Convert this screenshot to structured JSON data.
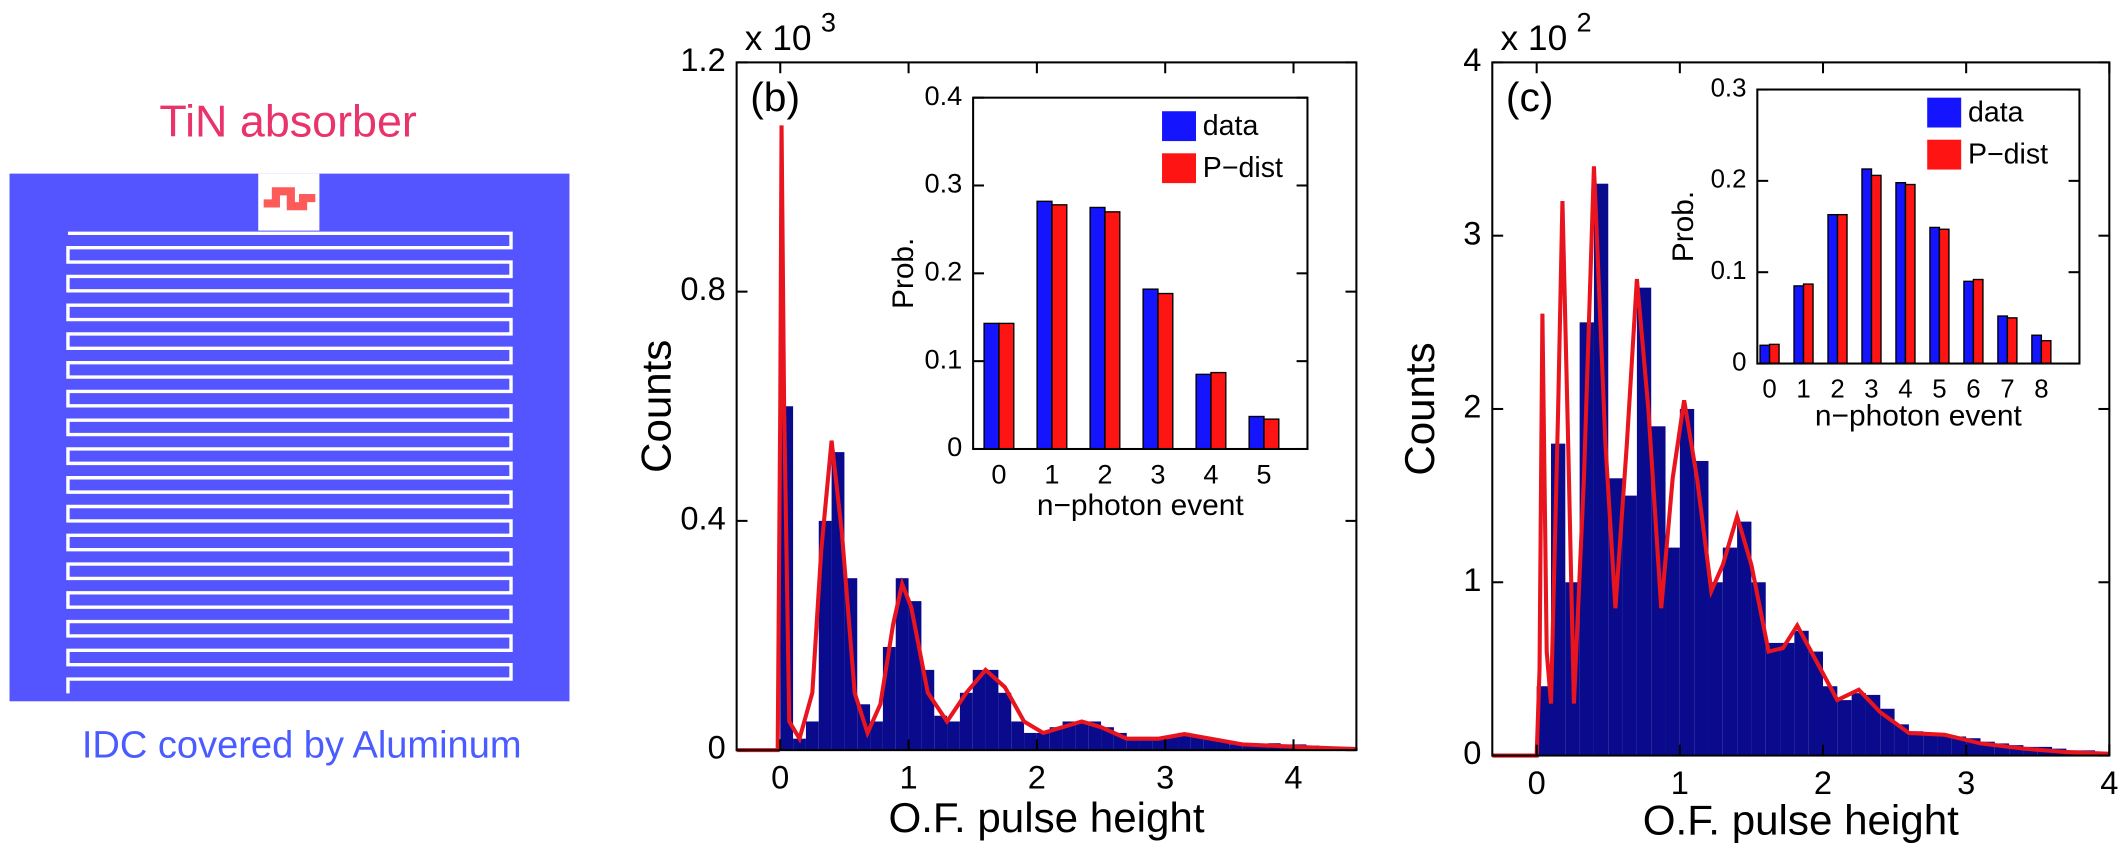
{
  "labels": {
    "absorber": "TiN absorber",
    "idc": "IDC covered by Aluminum"
  },
  "chart_data": [
    {
      "type": "histogram",
      "panel": "(b)",
      "scale_base": "x 10",
      "scale_exp": "3",
      "x_label": "O.F. pulse height",
      "y_label": "Counts",
      "xlim": [
        -0.34,
        4.49
      ],
      "xticks": [
        0,
        1,
        2,
        3,
        4
      ],
      "ylim": [
        0,
        1.2
      ],
      "yticks": [
        0,
        0.4,
        0.8,
        1.2
      ],
      "color": "#0a0a8c",
      "bins": [
        -0.2,
        -0.1,
        0,
        0.1,
        0.2,
        0.3,
        0.4,
        0.5,
        0.6,
        0.7,
        0.8,
        0.9,
        1,
        1.1,
        1.2,
        1.3,
        1.4,
        1.5,
        1.6,
        1.7,
        1.8,
        1.9,
        2,
        2.1,
        2.2,
        2.3,
        2.4,
        2.5,
        2.6,
        2.7,
        2.8,
        2.9,
        3,
        3.1,
        3.2,
        3.3,
        3.4,
        3.5,
        3.6,
        3.7,
        3.8,
        3.9,
        4,
        4.1,
        4.2,
        4.3,
        4.4,
        4.5
      ],
      "counts": [
        0,
        0,
        0.6,
        0.02,
        0.05,
        0.4,
        0.52,
        0.3,
        0.08,
        0.05,
        0.18,
        0.3,
        0.26,
        0.14,
        0.06,
        0.05,
        0.1,
        0.14,
        0.14,
        0.1,
        0.05,
        0.03,
        0.03,
        0.04,
        0.05,
        0.05,
        0.05,
        0.04,
        0.03,
        0.02,
        0.02,
        0.02,
        0.025,
        0.03,
        0.025,
        0.02,
        0.015,
        0.01,
        0.01,
        0.01,
        0.012,
        0.01,
        0.01,
        0.008,
        0.005,
        0.005,
        0.003
      ],
      "line": {
        "color": "#e8141e",
        "x": [
          -0.34,
          -0.02,
          0,
          0.01,
          0.03,
          0.07,
          0.15,
          0.25,
          0.32,
          0.4,
          0.48,
          0.58,
          0.68,
          0.78,
          0.88,
          0.95,
          1.02,
          1.15,
          1.3,
          1.45,
          1.6,
          1.75,
          1.9,
          2.05,
          2.2,
          2.35,
          2.5,
          2.7,
          2.95,
          3.15,
          3.35,
          3.6,
          3.9,
          4.2,
          4.49
        ],
        "values": [
          0,
          0,
          0.6,
          1.09,
          0.6,
          0.05,
          0.02,
          0.1,
          0.35,
          0.54,
          0.38,
          0.1,
          0.03,
          0.08,
          0.22,
          0.29,
          0.25,
          0.1,
          0.05,
          0.1,
          0.14,
          0.11,
          0.05,
          0.03,
          0.04,
          0.05,
          0.04,
          0.02,
          0.02,
          0.028,
          0.02,
          0.01,
          0.007,
          0.004,
          0.002
        ]
      }
    },
    {
      "type": "bar",
      "x_label": "n−photon event",
      "y_label": "Prob.",
      "categories": [
        "0",
        "1",
        "2",
        "3",
        "4",
        "5"
      ],
      "ylim": [
        0,
        0.4
      ],
      "yticks": [
        0,
        0.1,
        0.2,
        0.3,
        0.4
      ],
      "legend": "upper right",
      "series": [
        {
          "name": "data",
          "color": "#1414ff",
          "values": [
            0.143,
            0.282,
            0.275,
            0.182,
            0.085,
            0.037
          ]
        },
        {
          "name": "P−dist",
          "color": "#ff1414",
          "values": [
            0.143,
            0.278,
            0.27,
            0.177,
            0.087,
            0.034
          ]
        }
      ]
    },
    {
      "type": "histogram",
      "panel": "(c)",
      "scale_base": "x 10",
      "scale_exp": "2",
      "x_label": "O.F. pulse height",
      "y_label": "Counts",
      "xlim": [
        -0.31,
        4
      ],
      "xticks": [
        0,
        1,
        2,
        3,
        4
      ],
      "ylim": [
        0,
        4
      ],
      "yticks": [
        0,
        1,
        2,
        3,
        4
      ],
      "color": "#0a0a8c",
      "bins": [
        -0.2,
        -0.1,
        0,
        0.1,
        0.2,
        0.3,
        0.4,
        0.5,
        0.6,
        0.7,
        0.8,
        0.9,
        1,
        1.1,
        1.2,
        1.3,
        1.4,
        1.5,
        1.6,
        1.7,
        1.8,
        1.9,
        2,
        2.1,
        2.2,
        2.3,
        2.4,
        2.5,
        2.6,
        2.7,
        2.8,
        2.9,
        3,
        3.1,
        3.2,
        3.3,
        3.4,
        3.5,
        3.6,
        3.7,
        3.8,
        3.9,
        4
      ],
      "counts": [
        0,
        0,
        0.4,
        1.8,
        1.0,
        2.5,
        3.3,
        1.6,
        1.5,
        2.7,
        1.9,
        1.2,
        2.0,
        1.7,
        1.0,
        1.2,
        1.35,
        1.0,
        0.65,
        0.65,
        0.72,
        0.6,
        0.4,
        0.32,
        0.36,
        0.35,
        0.27,
        0.18,
        0.14,
        0.12,
        0.12,
        0.11,
        0.1,
        0.08,
        0.07,
        0.06,
        0.05,
        0.05,
        0.04,
        0.03,
        0.03,
        0.02
      ],
      "line": {
        "color": "#e8141e",
        "x": [
          -0.31,
          0,
          0.02,
          0.04,
          0.07,
          0.1,
          0.15,
          0.18,
          0.22,
          0.26,
          0.33,
          0.4,
          0.48,
          0.55,
          0.63,
          0.7,
          0.78,
          0.87,
          0.95,
          1.03,
          1.12,
          1.22,
          1.3,
          1.4,
          1.5,
          1.62,
          1.72,
          1.82,
          1.95,
          2.1,
          2.25,
          2.4,
          2.6,
          2.85,
          3.1,
          3.4,
          3.7,
          4
        ],
        "values": [
          0,
          0,
          0.5,
          2.55,
          0.6,
          0.3,
          2.0,
          3.2,
          1.8,
          0.3,
          1.6,
          3.4,
          1.8,
          0.85,
          1.8,
          2.75,
          2.0,
          0.85,
          1.6,
          2.05,
          1.6,
          0.95,
          1.1,
          1.38,
          1.1,
          0.6,
          0.62,
          0.75,
          0.55,
          0.32,
          0.38,
          0.25,
          0.13,
          0.12,
          0.07,
          0.04,
          0.02,
          0.01
        ]
      }
    },
    {
      "type": "bar",
      "x_label": "n−photon event",
      "y_label": "Prob.",
      "categories": [
        "0",
        "1",
        "2",
        "3",
        "4",
        "5",
        "6",
        "7",
        "8"
      ],
      "ylim": [
        0,
        0.3
      ],
      "yticks": [
        0,
        0.1,
        0.2,
        0.3
      ],
      "legend": "upper right",
      "series": [
        {
          "name": "data",
          "color": "#1414ff",
          "values": [
            0.02,
            0.085,
            0.163,
            0.213,
            0.198,
            0.149,
            0.09,
            0.052,
            0.031
          ]
        },
        {
          "name": "P−dist",
          "color": "#ff1414",
          "values": [
            0.021,
            0.087,
            0.163,
            0.206,
            0.196,
            0.147,
            0.092,
            0.05,
            0.025
          ]
        }
      ]
    }
  ]
}
